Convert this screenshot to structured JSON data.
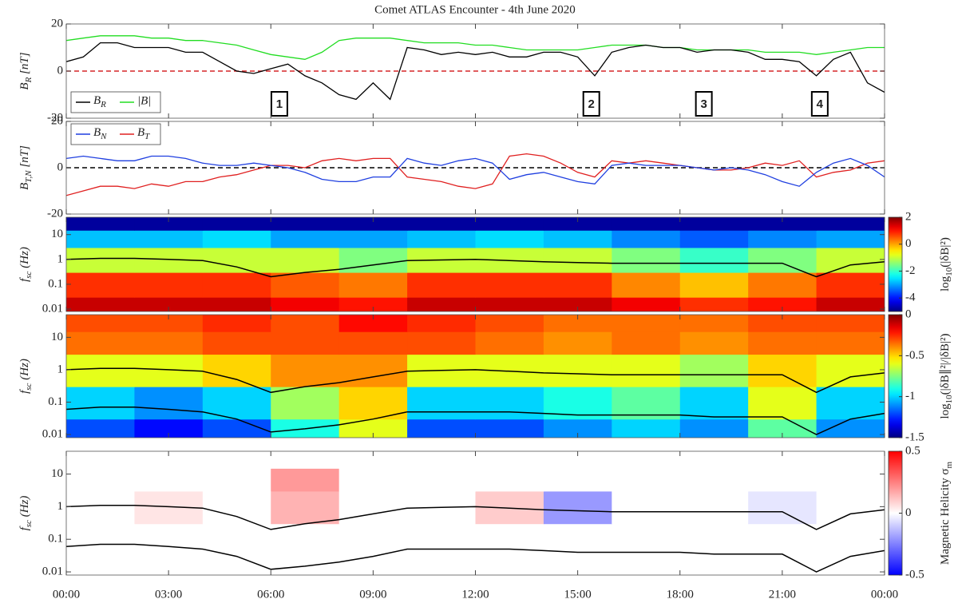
{
  "chart_data": [
    {
      "type": "line",
      "title": "Comet ATLAS Encounter - 4th June 2020",
      "ylabel": [
        "B",
        "R",
        " [nT]"
      ],
      "xlim": [
        0,
        24
      ],
      "ylim": [
        -20,
        20
      ],
      "yticks": [
        -20,
        0,
        20
      ],
      "hline": {
        "value": 0,
        "color": "#d62728"
      },
      "x": [
        0,
        0.5,
        1,
        1.5,
        2,
        2.5,
        3,
        3.5,
        4,
        4.5,
        5,
        5.5,
        6,
        6.5,
        7,
        7.5,
        8,
        8.5,
        9,
        9.5,
        10,
        10.5,
        11,
        11.5,
        12,
        12.5,
        13,
        13.5,
        14,
        14.5,
        15,
        15.5,
        16,
        16.5,
        17,
        17.5,
        18,
        18.5,
        19,
        19.5,
        20,
        20.5,
        21,
        21.5,
        22,
        22.5,
        23,
        23.5,
        24
      ],
      "series": [
        {
          "name": "|B|",
          "color": "#22dd22",
          "values": [
            13,
            14,
            15,
            15,
            15,
            14,
            14,
            13,
            13,
            12,
            11,
            9,
            7,
            6,
            5,
            8,
            13,
            14,
            14,
            14,
            13,
            12,
            12,
            12,
            11,
            11,
            10,
            9,
            9,
            9,
            9,
            10,
            11,
            11,
            11,
            10,
            10,
            9,
            9,
            9,
            9,
            8,
            8,
            8,
            7,
            8,
            9,
            10,
            10
          ]
        },
        {
          "name": [
            "B",
            "R"
          ],
          "color": "#000000",
          "values": [
            4,
            6,
            12,
            12,
            10,
            10,
            10,
            8,
            8,
            4,
            0,
            -1,
            1,
            3,
            -2,
            -5,
            -10,
            -12,
            -5,
            -12,
            10,
            9,
            7,
            8,
            7,
            8,
            6,
            6,
            8,
            8,
            6,
            -2,
            8,
            10,
            11,
            10,
            10,
            8,
            9,
            9,
            8,
            5,
            5,
            4,
            -2,
            5,
            8,
            -5,
            -9
          ]
        }
      ],
      "legend": "lower left",
      "annotations": [
        {
          "text": "1",
          "x": 6.25
        },
        {
          "text": "2",
          "x": 15.4
        },
        {
          "text": "3",
          "x": 18.7
        },
        {
          "text": "4",
          "x": 22.1
        }
      ]
    },
    {
      "type": "line",
      "ylabel": [
        "B",
        "T,N",
        " [nT]"
      ],
      "xlim": [
        0,
        24
      ],
      "ylim": [
        -20,
        20
      ],
      "yticks": [
        -20,
        0,
        20
      ],
      "hline": {
        "value": 0,
        "color": "#000000"
      },
      "x": [
        0,
        0.5,
        1,
        1.5,
        2,
        2.5,
        3,
        3.5,
        4,
        4.5,
        5,
        5.5,
        6,
        6.5,
        7,
        7.5,
        8,
        8.5,
        9,
        9.5,
        10,
        10.5,
        11,
        11.5,
        12,
        12.5,
        13,
        13.5,
        14,
        14.5,
        15,
        15.5,
        16,
        16.5,
        17,
        17.5,
        18,
        18.5,
        19,
        19.5,
        20,
        20.5,
        21,
        21.5,
        22,
        22.5,
        23,
        23.5,
        24
      ],
      "series": [
        {
          "name": [
            "B",
            "T"
          ],
          "color": "#e02020",
          "values": [
            -12,
            -10,
            -8,
            -8,
            -9,
            -7,
            -8,
            -6,
            -6,
            -4,
            -3,
            -1,
            1,
            1,
            0,
            3,
            4,
            3,
            4,
            4,
            -4,
            -5,
            -6,
            -8,
            -9,
            -7,
            5,
            6,
            5,
            2,
            -2,
            -4,
            3,
            2,
            3,
            2,
            1,
            0,
            -1,
            -1,
            0,
            2,
            1,
            3,
            -4,
            -2,
            -1,
            2,
            3
          ]
        },
        {
          "name": [
            "B",
            "N"
          ],
          "color": "#1f3fe0",
          "values": [
            4,
            5,
            4,
            3,
            3,
            5,
            5,
            4,
            2,
            1,
            1,
            2,
            1,
            0,
            -2,
            -5,
            -6,
            -6,
            -4,
            -4,
            4,
            2,
            1,
            3,
            4,
            2,
            -5,
            -3,
            -2,
            -4,
            -6,
            -7,
            1,
            2,
            1,
            1,
            1,
            0,
            -1,
            0,
            -1,
            -3,
            -6,
            -8,
            -2,
            2,
            4,
            1,
            -4
          ]
        }
      ],
      "legend": "upper left"
    },
    {
      "type": "heatmap",
      "ylabel": [
        "f",
        "sc",
        " (Hz)"
      ],
      "xlim": [
        0,
        24
      ],
      "ylim": [
        0.008,
        50
      ],
      "log_y": true,
      "yticks": [
        0.01,
        0.1,
        1,
        10
      ],
      "x_bins": [
        0,
        2,
        4,
        6,
        8,
        10,
        12,
        14,
        16,
        18,
        20,
        22,
        24
      ],
      "y_bins": [
        0.008,
        0.03,
        0.3,
        3,
        15,
        50
      ],
      "z": [
        [
          1.5,
          1.5,
          1.5,
          1.2,
          1.0,
          1.5,
          1.5,
          1.5,
          1.2,
          0.8,
          1.0,
          1.5
        ],
        [
          0.8,
          0.8,
          0.8,
          0.5,
          0.3,
          0.8,
          0.8,
          0.8,
          0.2,
          -0.2,
          0.3,
          0.8
        ],
        [
          -1,
          -1,
          -1,
          -1,
          -1.5,
          -1,
          -1,
          -1,
          -1.5,
          -2,
          -1.5,
          -1
        ],
        [
          -2.8,
          -2.8,
          -2.6,
          -3,
          -3,
          -2.8,
          -2.6,
          -2.8,
          -3.2,
          -3.5,
          -3.2,
          -3
        ],
        [
          -4.8,
          -4.8,
          -4.8,
          -4.8,
          -4.8,
          -4.8,
          -4.8,
          -4.8,
          -4.8,
          -4.8,
          -4.8,
          -4.8
        ]
      ],
      "colormap": "jet",
      "clim": [
        -5,
        2
      ],
      "cticks": [
        -4,
        -2,
        0,
        2
      ],
      "clabel": [
        "log",
        "10",
        "(|δB|²)"
      ],
      "line_x": [
        0,
        1,
        2,
        3,
        4,
        5,
        6,
        7,
        8,
        9,
        10,
        11,
        12,
        13,
        14,
        15,
        16,
        17,
        18,
        19,
        20,
        21,
        22,
        23,
        24
      ],
      "lines": [
        {
          "color": "#000000",
          "values": [
            1,
            1.1,
            1.1,
            1.0,
            0.9,
            0.5,
            0.2,
            0.3,
            0.4,
            0.6,
            0.9,
            0.95,
            1.0,
            0.9,
            0.8,
            0.75,
            0.7,
            0.7,
            0.7,
            0.7,
            0.7,
            0.7,
            0.2,
            0.6,
            0.8
          ]
        }
      ]
    },
    {
      "type": "heatmap",
      "ylabel": [
        "f",
        "sc",
        " (Hz)"
      ],
      "xlim": [
        0,
        24
      ],
      "ylim": [
        0.008,
        50
      ],
      "log_y": true,
      "yticks": [
        0.01,
        0.1,
        1,
        10
      ],
      "x_bins": [
        0,
        2,
        4,
        6,
        8,
        10,
        12,
        14,
        16,
        18,
        20,
        22,
        24
      ],
      "y_bins": [
        0.008,
        0.03,
        0.3,
        3,
        15,
        50
      ],
      "z": [
        [
          -1.2,
          -1.3,
          -1.2,
          -0.9,
          -0.6,
          -1.2,
          -1.2,
          -1.1,
          -1,
          -1.1,
          -0.8,
          -1.1
        ],
        [
          -1,
          -1.1,
          -1,
          -0.7,
          -0.5,
          -1,
          -1,
          -0.9,
          -0.8,
          -1,
          -0.6,
          -1
        ],
        [
          -0.6,
          -0.6,
          -0.5,
          -0.4,
          -0.4,
          -0.6,
          -0.6,
          -0.6,
          -0.6,
          -0.7,
          -0.5,
          -0.6
        ],
        [
          -0.35,
          -0.35,
          -0.3,
          -0.3,
          -0.3,
          -0.3,
          -0.35,
          -0.4,
          -0.35,
          -0.4,
          -0.35,
          -0.35
        ],
        [
          -0.3,
          -0.3,
          -0.25,
          -0.3,
          -0.2,
          -0.25,
          -0.3,
          -0.35,
          -0.35,
          -0.35,
          -0.3,
          -0.3
        ]
      ],
      "colormap": "jet",
      "clim": [
        -1.5,
        0
      ],
      "cticks": [
        -1.5,
        -1,
        -0.5,
        0
      ],
      "clabel": [
        "log",
        "10",
        "(|δB∥²|/|δB|²)"
      ],
      "line_x": [
        0,
        1,
        2,
        3,
        4,
        5,
        6,
        7,
        8,
        9,
        10,
        11,
        12,
        13,
        14,
        15,
        16,
        17,
        18,
        19,
        20,
        21,
        22,
        23,
        24
      ],
      "lines": [
        {
          "color": "#000000",
          "values": [
            1,
            1.1,
            1.1,
            1.0,
            0.9,
            0.5,
            0.2,
            0.3,
            0.4,
            0.6,
            0.9,
            0.95,
            1.0,
            0.9,
            0.8,
            0.75,
            0.7,
            0.7,
            0.7,
            0.7,
            0.7,
            0.7,
            0.2,
            0.6,
            0.8
          ]
        },
        {
          "color": "#000000",
          "values": [
            0.06,
            0.07,
            0.07,
            0.06,
            0.05,
            0.03,
            0.012,
            0.015,
            0.02,
            0.03,
            0.05,
            0.05,
            0.05,
            0.05,
            0.045,
            0.04,
            0.04,
            0.04,
            0.04,
            0.035,
            0.035,
            0.035,
            0.01,
            0.03,
            0.045
          ]
        }
      ]
    },
    {
      "type": "heatmap",
      "ylabel": [
        "f",
        "sc",
        " (Hz)"
      ],
      "xlim": [
        0,
        24
      ],
      "ylim": [
        0.008,
        50
      ],
      "log_y": true,
      "yticks": [
        0.01,
        0.1,
        1,
        10
      ],
      "xticks": [
        {
          "value": 0,
          "label": "00:00"
        },
        {
          "value": 3,
          "label": "03:00"
        },
        {
          "value": 6,
          "label": "06:00"
        },
        {
          "value": 9,
          "label": "09:00"
        },
        {
          "value": 12,
          "label": "12:00"
        },
        {
          "value": 15,
          "label": "15:00"
        },
        {
          "value": 18,
          "label": "18:00"
        },
        {
          "value": 21,
          "label": "21:00"
        },
        {
          "value": 24,
          "label": "00:00"
        }
      ],
      "x_bins": [
        0,
        2,
        4,
        6,
        8,
        10,
        12,
        14,
        16,
        18,
        20,
        22,
        24
      ],
      "y_bins": [
        0.008,
        0.03,
        0.3,
        3,
        15,
        50
      ],
      "z": [
        [
          0,
          0,
          0,
          0,
          0,
          0,
          0,
          0,
          0,
          0,
          0,
          0
        ],
        [
          0,
          0,
          0,
          0,
          0,
          0,
          0,
          0,
          0,
          0,
          0,
          0
        ],
        [
          0,
          0.05,
          0,
          0.15,
          0,
          0,
          0.1,
          -0.2,
          0,
          0,
          -0.05,
          0
        ],
        [
          0,
          0,
          0,
          0.2,
          0,
          0,
          0,
          0,
          0,
          0,
          0,
          0
        ],
        [
          0,
          0,
          0,
          0,
          0,
          0,
          0,
          0,
          0,
          0,
          0,
          0
        ]
      ],
      "colormap": "bwr",
      "clim": [
        -0.5,
        0.5
      ],
      "cticks": [
        -0.5,
        0,
        0.5
      ],
      "clabel": [
        "Magnetic Helicity σ",
        "m"
      ],
      "line_x": [
        0,
        1,
        2,
        3,
        4,
        5,
        6,
        7,
        8,
        9,
        10,
        11,
        12,
        13,
        14,
        15,
        16,
        17,
        18,
        19,
        20,
        21,
        22,
        23,
        24
      ],
      "lines": [
        {
          "color": "#000000",
          "values": [
            1,
            1.1,
            1.1,
            1.0,
            0.9,
            0.5,
            0.2,
            0.3,
            0.4,
            0.6,
            0.9,
            0.95,
            1.0,
            0.9,
            0.8,
            0.75,
            0.7,
            0.7,
            0.7,
            0.7,
            0.7,
            0.7,
            0.2,
            0.6,
            0.8
          ]
        },
        {
          "color": "#000000",
          "values": [
            0.06,
            0.07,
            0.07,
            0.06,
            0.05,
            0.03,
            0.012,
            0.015,
            0.02,
            0.03,
            0.05,
            0.05,
            0.05,
            0.05,
            0.045,
            0.04,
            0.04,
            0.04,
            0.04,
            0.035,
            0.035,
            0.035,
            0.01,
            0.03,
            0.045
          ]
        }
      ]
    }
  ]
}
